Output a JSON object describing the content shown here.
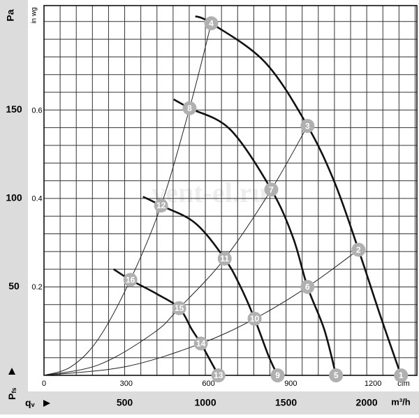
{
  "chart_data": {
    "type": "fan-curve",
    "watermark": "vent-el.ru",
    "y_label": "Pa",
    "y2_label": "in wg",
    "x_label": "cfm",
    "x2_label": "m³/h",
    "x2_symbol": {
      "main": "q",
      "sub": "v"
    },
    "y_symbol": {
      "main": "P",
      "sub": "fs"
    },
    "xlim": [
      0,
      1360
    ],
    "xticks": [
      0,
      300,
      600,
      900,
      1200
    ],
    "x2lim": [
      0,
      2311
    ],
    "x2ticks": [
      500,
      1000,
      1500,
      2000
    ],
    "ylim": [
      0,
      209
    ],
    "yticks": [
      50,
      100,
      150
    ],
    "y2lim": [
      0,
      0.839
    ],
    "y2ticks": [
      0.2,
      0.4,
      0.6
    ],
    "grid": true,
    "ygrid": [
      0,
      10,
      20,
      30,
      40,
      50,
      60,
      70,
      80,
      90,
      100,
      110,
      120,
      130,
      140,
      150,
      160,
      170,
      180,
      190,
      200
    ],
    "x2grid": [
      0,
      100,
      200,
      300,
      400,
      500,
      600,
      700,
      800,
      900,
      1000,
      1100,
      1200,
      1300,
      1400,
      1500,
      1600,
      1700,
      1800,
      1900,
      2000,
      2100,
      2200,
      2300
    ],
    "fan_curves": [
      {
        "color": "#111111",
        "x": [
          552,
          610,
          806,
          961,
          1060,
          1147,
          1226,
          1302
        ],
        "values": [
          203,
          199,
          177,
          141,
          109,
          71,
          34,
          0
        ]
      },
      {
        "color": "#111111",
        "x": [
          473,
          531,
          679,
          829,
          908,
          961,
          1022,
          1065
        ],
        "values": [
          156,
          151,
          139,
          105,
          78,
          50,
          26,
          0
        ]
      },
      {
        "color": "#111111",
        "x": [
          361,
          427,
          552,
          659,
          717,
          768,
          819,
          852
        ],
        "values": [
          101,
          96,
          86,
          66,
          50,
          32,
          11,
          0
        ]
      },
      {
        "color": "#111111",
        "x": [
          254,
          315,
          412,
          493,
          539,
          572,
          615,
          636
        ],
        "values": [
          60,
          54,
          46,
          38,
          26,
          18,
          6,
          0
        ]
      }
    ],
    "system_curves": [
      {
        "color": "#222222",
        "x": [
          0,
          100,
          200,
          315,
          427,
          531,
          610
        ],
        "values": [
          0,
          5,
          21,
          54,
          96,
          151,
          199
        ]
      },
      {
        "color": "#222222",
        "x": [
          0,
          200,
          400,
          493,
          659,
          829,
          961
        ],
        "values": [
          0,
          6,
          24,
          38,
          66,
          105,
          141
        ]
      },
      {
        "color": "#222222",
        "x": [
          0,
          300,
          572,
          768,
          961,
          1147
        ],
        "values": [
          0,
          5,
          18,
          32,
          50,
          71
        ]
      }
    ],
    "points": [
      {
        "label": "1",
        "x": 1302,
        "y": 0
      },
      {
        "label": "2",
        "x": 1147,
        "y": 71
      },
      {
        "label": "3",
        "x": 961,
        "y": 141
      },
      {
        "label": "4",
        "x": 610,
        "y": 199
      },
      {
        "label": "5",
        "x": 1065,
        "y": 0
      },
      {
        "label": "6",
        "x": 961,
        "y": 50
      },
      {
        "label": "7",
        "x": 829,
        "y": 105
      },
      {
        "label": "8",
        "x": 531,
        "y": 151
      },
      {
        "label": "9",
        "x": 852,
        "y": 0
      },
      {
        "label": "10",
        "x": 768,
        "y": 32
      },
      {
        "label": "11",
        "x": 659,
        "y": 66
      },
      {
        "label": "12",
        "x": 427,
        "y": 96
      },
      {
        "label": "13",
        "x": 636,
        "y": 0
      },
      {
        "label": "14",
        "x": 572,
        "y": 18
      },
      {
        "label": "15",
        "x": 493,
        "y": 38
      },
      {
        "label": "16",
        "x": 315,
        "y": 54
      }
    ],
    "point_color": "#b0b0b0"
  }
}
